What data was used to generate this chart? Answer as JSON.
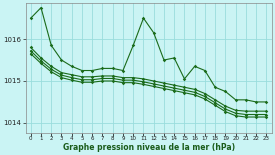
{
  "background_color": "#caf4f4",
  "grid_color": "#99dddd",
  "line_color": "#1a6b1a",
  "xlabel": "Graphe pression niveau de la mer (hPa)",
  "yticks": [
    1014,
    1015,
    1016
  ],
  "xticks": [
    0,
    1,
    2,
    3,
    4,
    5,
    6,
    7,
    8,
    9,
    10,
    11,
    12,
    13,
    14,
    15,
    16,
    17,
    18,
    19,
    20,
    21,
    22,
    23
  ],
  "xlim": [
    -0.5,
    23.5
  ],
  "ylim": [
    1013.75,
    1016.85
  ],
  "series": [
    [
      1016.5,
      1016.75,
      1015.85,
      1015.5,
      1015.35,
      1015.25,
      1015.25,
      1015.3,
      1015.3,
      1015.25,
      1015.85,
      1016.5,
      1016.15,
      1015.5,
      1015.55,
      1015.05,
      1015.35,
      1015.25,
      1014.85,
      1014.75,
      1014.55,
      1014.55,
      1014.5,
      1014.5
    ],
    [
      1015.8,
      1015.55,
      1015.35,
      1015.2,
      1015.15,
      1015.1,
      1015.1,
      1015.12,
      1015.12,
      1015.08,
      1015.08,
      1015.05,
      1015.0,
      1014.95,
      1014.9,
      1014.85,
      1014.8,
      1014.7,
      1014.55,
      1014.4,
      1014.3,
      1014.28,
      1014.28,
      1014.28
    ],
    [
      1015.72,
      1015.48,
      1015.28,
      1015.14,
      1015.08,
      1015.03,
      1015.03,
      1015.06,
      1015.06,
      1015.02,
      1015.02,
      1014.98,
      1014.93,
      1014.88,
      1014.83,
      1014.78,
      1014.73,
      1014.63,
      1014.48,
      1014.33,
      1014.23,
      1014.2,
      1014.2,
      1014.2
    ],
    [
      1015.65,
      1015.42,
      1015.22,
      1015.08,
      1015.02,
      1014.97,
      1014.97,
      1015.0,
      1015.0,
      1014.96,
      1014.96,
      1014.92,
      1014.87,
      1014.82,
      1014.77,
      1014.72,
      1014.67,
      1014.57,
      1014.42,
      1014.27,
      1014.17,
      1014.14,
      1014.14,
      1014.14
    ]
  ],
  "marker": "D",
  "marker_size": 1.8,
  "line_width": 0.8
}
